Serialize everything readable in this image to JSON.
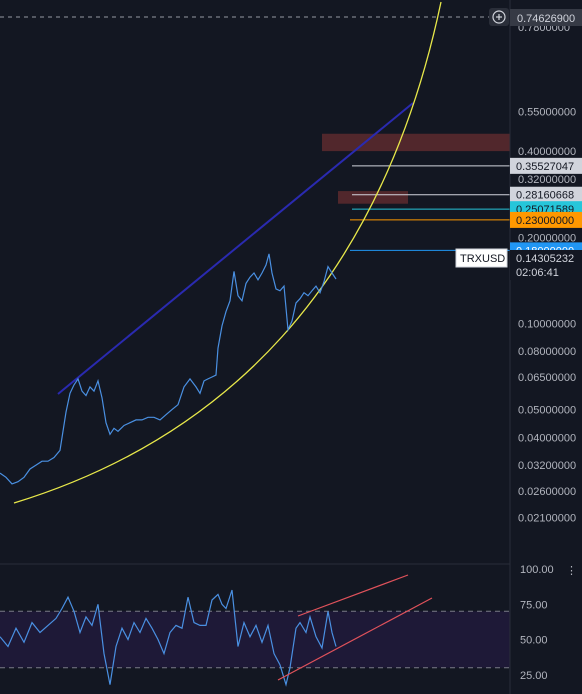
{
  "chart_data": [
    {
      "type": "line",
      "symbol": "TRXUSD",
      "scale": "log",
      "ylim": [
        0.0185,
        0.775
      ],
      "price_axis_ticks": [
        "0.55000000",
        "0.40000000",
        "0.32000000",
        "0.20000000",
        "0.16000000",
        "0.10000000",
        "0.08000000",
        "0.06500000",
        "0.05000000",
        "0.04000000",
        "0.03200000",
        "0.02600000",
        "0.02100000"
      ],
      "top_partial_tick": "0.7800000",
      "current_price": "0.14305232",
      "countdown": "02:06:41",
      "crosshair_price": "0.74626900",
      "price_labels": [
        {
          "value": "0.35527047",
          "bg": "#d1d4dc",
          "fg": "#131722"
        },
        {
          "value": "0.28160668",
          "bg": "#d1d4dc",
          "fg": "#131722"
        },
        {
          "value": "0.25071589",
          "bg": "#26c6da",
          "fg": "#131722"
        },
        {
          "value": "0.23000000",
          "bg": "#ff9800",
          "fg": "#131722"
        },
        {
          "value": "0.18000000",
          "bg": "#2196f3",
          "fg": "#ffffff"
        }
      ],
      "horizontal_levels": [
        {
          "price": 0.35527047,
          "color": "#d1d4dc"
        },
        {
          "price": 0.28160668,
          "color": "#d1d4dc"
        },
        {
          "price": 0.25071589,
          "color": "#26c6da"
        },
        {
          "price": 0.23,
          "color": "#ff9800"
        },
        {
          "price": 0.18,
          "color": "#2196f3"
        }
      ],
      "zones": [
        {
          "from": 0.4,
          "to": 0.46,
          "color": "#5d2a2e"
        },
        {
          "from": 0.262,
          "to": 0.29,
          "color": "#5d2a2e"
        }
      ],
      "price_path": [
        [
          0,
          0.03
        ],
        [
          6,
          0.029
        ],
        [
          12,
          0.0275
        ],
        [
          18,
          0.028
        ],
        [
          24,
          0.029
        ],
        [
          30,
          0.031
        ],
        [
          36,
          0.032
        ],
        [
          42,
          0.033
        ],
        [
          48,
          0.033
        ],
        [
          54,
          0.034
        ],
        [
          60,
          0.036
        ],
        [
          66,
          0.049
        ],
        [
          70,
          0.057
        ],
        [
          74,
          0.061
        ],
        [
          78,
          0.064
        ],
        [
          82,
          0.058
        ],
        [
          86,
          0.056
        ],
        [
          90,
          0.06
        ],
        [
          94,
          0.058
        ],
        [
          98,
          0.063
        ],
        [
          102,
          0.055
        ],
        [
          106,
          0.045
        ],
        [
          110,
          0.041
        ],
        [
          114,
          0.043
        ],
        [
          118,
          0.042
        ],
        [
          124,
          0.044
        ],
        [
          130,
          0.045
        ],
        [
          136,
          0.046
        ],
        [
          142,
          0.046
        ],
        [
          148,
          0.047
        ],
        [
          154,
          0.047
        ],
        [
          160,
          0.046
        ],
        [
          166,
          0.048
        ],
        [
          172,
          0.05
        ],
        [
          178,
          0.052
        ],
        [
          184,
          0.06
        ],
        [
          190,
          0.064
        ],
        [
          196,
          0.06
        ],
        [
          200,
          0.057
        ],
        [
          204,
          0.063
        ],
        [
          208,
          0.064
        ],
        [
          212,
          0.065
        ],
        [
          216,
          0.066
        ],
        [
          218,
          0.082
        ],
        [
          222,
          0.098
        ],
        [
          226,
          0.11
        ],
        [
          230,
          0.12
        ],
        [
          234,
          0.152
        ],
        [
          238,
          0.125
        ],
        [
          242,
          0.12
        ],
        [
          246,
          0.138
        ],
        [
          250,
          0.145
        ],
        [
          254,
          0.15
        ],
        [
          258,
          0.142
        ],
        [
          262,
          0.15
        ],
        [
          266,
          0.16
        ],
        [
          269,
          0.175
        ],
        [
          272,
          0.15
        ],
        [
          276,
          0.132
        ],
        [
          280,
          0.13
        ],
        [
          284,
          0.135
        ],
        [
          288,
          0.095
        ],
        [
          292,
          0.102
        ],
        [
          296,
          0.118
        ],
        [
          300,
          0.122
        ],
        [
          304,
          0.128
        ],
        [
          308,
          0.125
        ],
        [
          312,
          0.13
        ],
        [
          316,
          0.135
        ],
        [
          320,
          0.128
        ],
        [
          324,
          0.14
        ],
        [
          328,
          0.158
        ],
        [
          332,
          0.15
        ],
        [
          336,
          0.143
        ]
      ],
      "rsi": {
        "ylim": [
          0,
          100
        ],
        "ticks": [
          "100.00",
          "75.00",
          "50.00",
          "25.00"
        ],
        "bands": [
          30,
          70
        ],
        "values": [
          [
            0,
            52
          ],
          [
            8,
            45
          ],
          [
            16,
            58
          ],
          [
            24,
            48
          ],
          [
            32,
            62
          ],
          [
            40,
            55
          ],
          [
            48,
            60
          ],
          [
            56,
            65
          ],
          [
            62,
            72
          ],
          [
            68,
            80
          ],
          [
            74,
            70
          ],
          [
            80,
            55
          ],
          [
            86,
            66
          ],
          [
            92,
            60
          ],
          [
            98,
            75
          ],
          [
            104,
            40
          ],
          [
            110,
            18
          ],
          [
            116,
            45
          ],
          [
            122,
            58
          ],
          [
            128,
            50
          ],
          [
            134,
            62
          ],
          [
            140,
            55
          ],
          [
            146,
            65
          ],
          [
            152,
            58
          ],
          [
            158,
            50
          ],
          [
            164,
            40
          ],
          [
            170,
            55
          ],
          [
            176,
            60
          ],
          [
            182,
            58
          ],
          [
            188,
            80
          ],
          [
            194,
            62
          ],
          [
            200,
            60
          ],
          [
            206,
            60
          ],
          [
            212,
            78
          ],
          [
            218,
            82
          ],
          [
            222,
            75
          ],
          [
            226,
            72
          ],
          [
            232,
            85
          ],
          [
            238,
            45
          ],
          [
            244,
            62
          ],
          [
            250,
            52
          ],
          [
            256,
            60
          ],
          [
            262,
            48
          ],
          [
            268,
            60
          ],
          [
            274,
            40
          ],
          [
            280,
            32
          ],
          [
            286,
            18
          ],
          [
            290,
            30
          ],
          [
            296,
            58
          ],
          [
            300,
            62
          ],
          [
            306,
            55
          ],
          [
            310,
            66
          ],
          [
            316,
            52
          ],
          [
            322,
            44
          ],
          [
            328,
            70
          ],
          [
            332,
            55
          ],
          [
            336,
            45
          ]
        ]
      }
    }
  ]
}
